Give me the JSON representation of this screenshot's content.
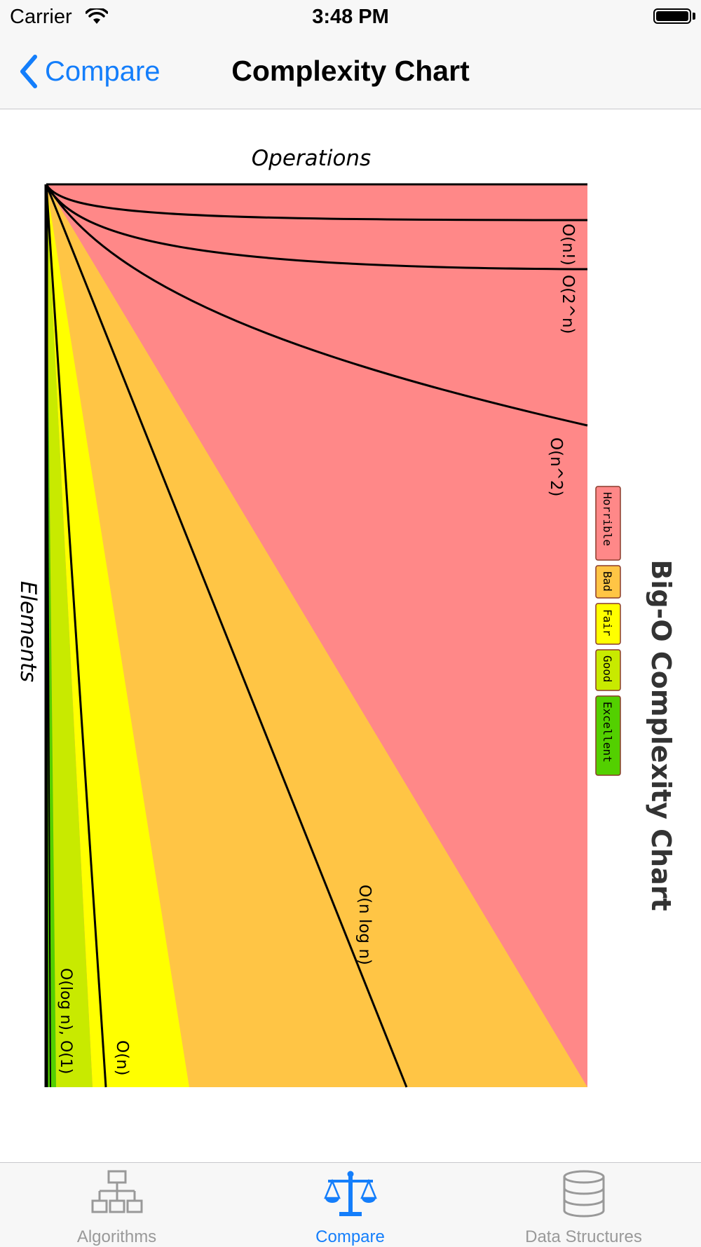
{
  "status_bar": {
    "carrier": "Carrier",
    "time": "3:48 PM"
  },
  "nav": {
    "back_label": "Compare",
    "title": "Complexity Chart"
  },
  "chart": {
    "heading": "Big-O Complexity Chart",
    "operations_label": "Operations",
    "elements_label": "Elements",
    "legend": [
      {
        "label": "Horrible",
        "color": "#ff8888"
      },
      {
        "label": "Bad",
        "color": "#ffc545"
      },
      {
        "label": "Fair",
        "color": "#ffff00"
      },
      {
        "label": "Good",
        "color": "#c8ea00"
      },
      {
        "label": "Excellent",
        "color": "#53d000"
      }
    ],
    "curves": [
      {
        "label": "O(n!)"
      },
      {
        "label": "O(2^n)"
      },
      {
        "label": "O(n^2)"
      },
      {
        "label": "O(n log n)"
      },
      {
        "label": "O(n)"
      },
      {
        "label": "O(log n), O(1)"
      }
    ]
  },
  "chart_data": {
    "type": "area",
    "title": "Big-O Complexity Chart",
    "xlabel": "Elements",
    "ylabel": "Operations",
    "series": [
      {
        "name": "O(n!)"
      },
      {
        "name": "O(2^n)"
      },
      {
        "name": "O(n^2)"
      },
      {
        "name": "O(n log n)"
      },
      {
        "name": "O(n)"
      },
      {
        "name": "O(log n), O(1)"
      }
    ],
    "regions": [
      "Horrible",
      "Bad",
      "Fair",
      "Good",
      "Excellent"
    ],
    "legend_position": "right"
  },
  "tabs": [
    {
      "label": "Algorithms",
      "icon": "hierarchy-icon",
      "active": false
    },
    {
      "label": "Compare",
      "icon": "scales-icon",
      "active": true
    },
    {
      "label": "Data Structures",
      "icon": "database-icon",
      "active": false
    }
  ],
  "colors": {
    "accent": "#147efb",
    "inactive_tab": "#999999",
    "horrible": "#ff8888",
    "bad": "#ffc545",
    "fair": "#ffff00",
    "good": "#c8ea00",
    "excellent": "#53d000"
  }
}
